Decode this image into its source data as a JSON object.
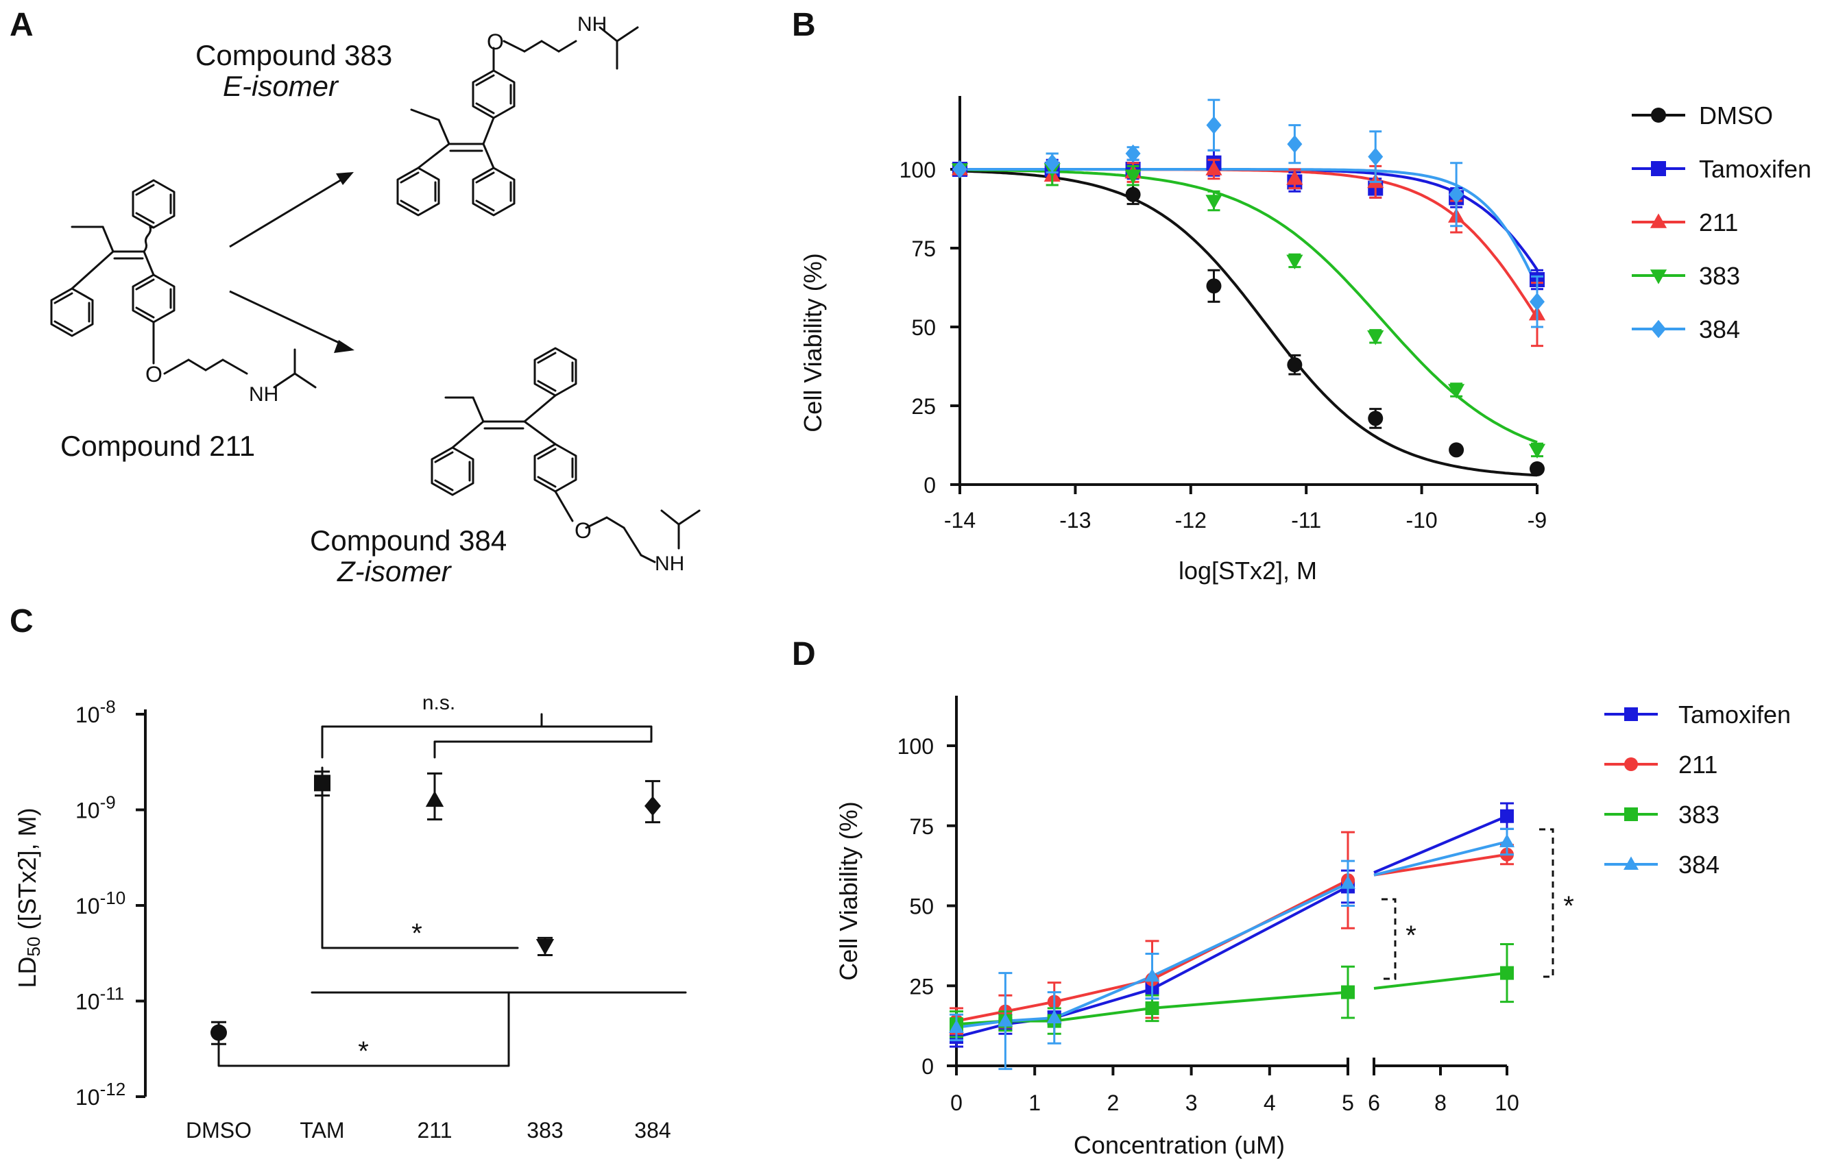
{
  "panel_letters": [
    "A",
    "B",
    "C",
    "D"
  ],
  "panelA": {
    "compound_383_line1": "Compound 383",
    "compound_383_line2": "E-isomer",
    "compound_211": "Compound 211",
    "compound_384_line1": "Compound 384",
    "compound_384_line2": "Z-isomer",
    "nh_label": "NH",
    "o_label": "O"
  },
  "colors": {
    "DMSO": "#111111",
    "Tamoxifen": "#1a1adc",
    "211": "#f03a3a",
    "383": "#22bb22",
    "384": "#3a9ef0"
  },
  "chart_data": [
    {
      "panel": "B",
      "type": "line",
      "xlabel": "log[STx2], M",
      "ylabel": "Cell Viability (%)",
      "xlim": [
        -14,
        -9
      ],
      "ylim": [
        0,
        120
      ],
      "x_ticks": [
        -14,
        -13,
        -12,
        -11,
        -10,
        -9
      ],
      "x_tick_labels": [
        "-14",
        "-13",
        "-12",
        "-11",
        "-10",
        "-9"
      ],
      "y_ticks": [
        0,
        25,
        50,
        75,
        100
      ],
      "y_tick_labels": [
        "0",
        "25",
        "50",
        "75",
        "100"
      ],
      "x": [
        -14,
        -13.2,
        -12.5,
        -11.8,
        -11.1,
        -10.4,
        -9.7,
        -9.0
      ],
      "series": [
        {
          "name": "DMSO",
          "marker": "circle",
          "values": [
            100,
            99,
            92,
            63,
            38,
            21,
            11,
            5
          ],
          "errors": [
            0,
            2,
            3,
            5,
            3,
            3,
            0,
            0
          ],
          "fit": {
            "top": 100,
            "bottom": 2,
            "logIC50": -11.35,
            "hill": 0.85
          }
        },
        {
          "name": "Tamoxifen",
          "marker": "square",
          "values": [
            100,
            100,
            100,
            102,
            96,
            94,
            91,
            65
          ],
          "errors": [
            0,
            3,
            3,
            4,
            3,
            3,
            3,
            3
          ],
          "fit": {
            "top": 100,
            "bottom": 0,
            "logIC50": -8.7,
            "hill": 1.1
          }
        },
        {
          "name": "211",
          "marker": "triangle-up",
          "values": [
            100,
            98,
            99,
            100,
            97,
            96,
            85,
            54
          ],
          "errors": [
            0,
            3,
            3,
            3,
            3,
            5,
            5,
            10
          ],
          "fit": {
            "top": 100,
            "bottom": 0,
            "logIC50": -8.95,
            "hill": 1.0
          }
        },
        {
          "name": "383",
          "marker": "triangle-down",
          "values": [
            100,
            100,
            98,
            90,
            71,
            47,
            30,
            11
          ],
          "errors": [
            0,
            5,
            3,
            3,
            2,
            2,
            2,
            2
          ],
          "fit": {
            "top": 100,
            "bottom": 5,
            "logIC50": -10.35,
            "hill": 0.75
          }
        },
        {
          "name": "384",
          "marker": "diamond",
          "values": [
            100,
            102,
            105,
            114,
            108,
            104,
            92,
            58
          ],
          "errors": [
            0,
            3,
            2,
            8,
            6,
            8,
            10,
            8
          ],
          "fit": {
            "top": 100,
            "bottom": 0,
            "logIC50": -8.85,
            "hill": 1.5
          }
        }
      ],
      "legend": [
        "DMSO",
        "Tamoxifen",
        "211",
        "383",
        "384"
      ],
      "legend_position": "right"
    },
    {
      "panel": "C",
      "type": "scatter",
      "ylabel_main": "LD",
      "ylabel_sub": "50",
      "ylabel_rest": " ([STx2], M)",
      "y_scale": "log",
      "ylim_exponent": [
        -12,
        -8
      ],
      "y_tick_base": "10",
      "y_tick_exponents": [
        "-12",
        "-11",
        "-10",
        "-9",
        "-8"
      ],
      "categories": [
        "DMSO",
        "TAM",
        "211",
        "383",
        "384"
      ],
      "markers": [
        "circle",
        "square",
        "triangle-up",
        "triangle-down",
        "diamond"
      ],
      "values_log10": [
        -11.33,
        -8.72,
        -8.9,
        -10.42,
        -8.96
      ],
      "err_upper_log10": [
        -11.22,
        -8.6,
        -8.62,
        -10.34,
        -8.7
      ],
      "err_lower_log10": [
        -11.45,
        -8.85,
        -9.1,
        -10.52,
        -9.13
      ],
      "annotations": [
        "n.s.",
        "*",
        "*"
      ]
    },
    {
      "panel": "D",
      "type": "line",
      "xlabel": "Concentration (uM)",
      "ylabel": "Cell Viability (%)",
      "ylim": [
        0,
        110
      ],
      "x_ticks_seg1": [
        0,
        1,
        2,
        3,
        4,
        5
      ],
      "x_tick_labels_seg1": [
        "0",
        "1",
        "2",
        "3",
        "4",
        "5"
      ],
      "x_ticks_seg2": [
        6,
        8,
        10
      ],
      "x_tick_labels_seg2": [
        "6",
        "8",
        "10"
      ],
      "y_ticks": [
        0,
        25,
        50,
        75,
        100
      ],
      "y_tick_labels": [
        "0",
        "25",
        "50",
        "75",
        "100"
      ],
      "x": [
        0,
        0.625,
        1.25,
        2.5,
        5,
        10
      ],
      "series": [
        {
          "name": "Tamoxifen",
          "marker": "square",
          "values": [
            9,
            13,
            15,
            24,
            56,
            78
          ],
          "errors": [
            3,
            3,
            2,
            3,
            5,
            4
          ]
        },
        {
          "name": "211",
          "marker": "circle",
          "values": [
            14,
            17,
            20,
            27,
            58,
            66
          ],
          "errors": [
            4,
            5,
            6,
            12,
            15,
            3
          ]
        },
        {
          "name": "383",
          "marker": "square",
          "values": [
            13,
            14,
            14,
            18,
            23,
            29
          ],
          "errors": [
            4,
            3,
            4,
            4,
            8,
            9
          ]
        },
        {
          "name": "384",
          "marker": "triangle-up",
          "values": [
            12,
            14,
            15,
            28,
            57,
            70
          ],
          "errors": [
            4,
            15,
            8,
            7,
            7,
            4
          ]
        }
      ],
      "legend": [
        "Tamoxifen",
        "211",
        "383",
        "384"
      ],
      "legend_position": "right",
      "annotations": [
        "*",
        "*"
      ]
    }
  ]
}
